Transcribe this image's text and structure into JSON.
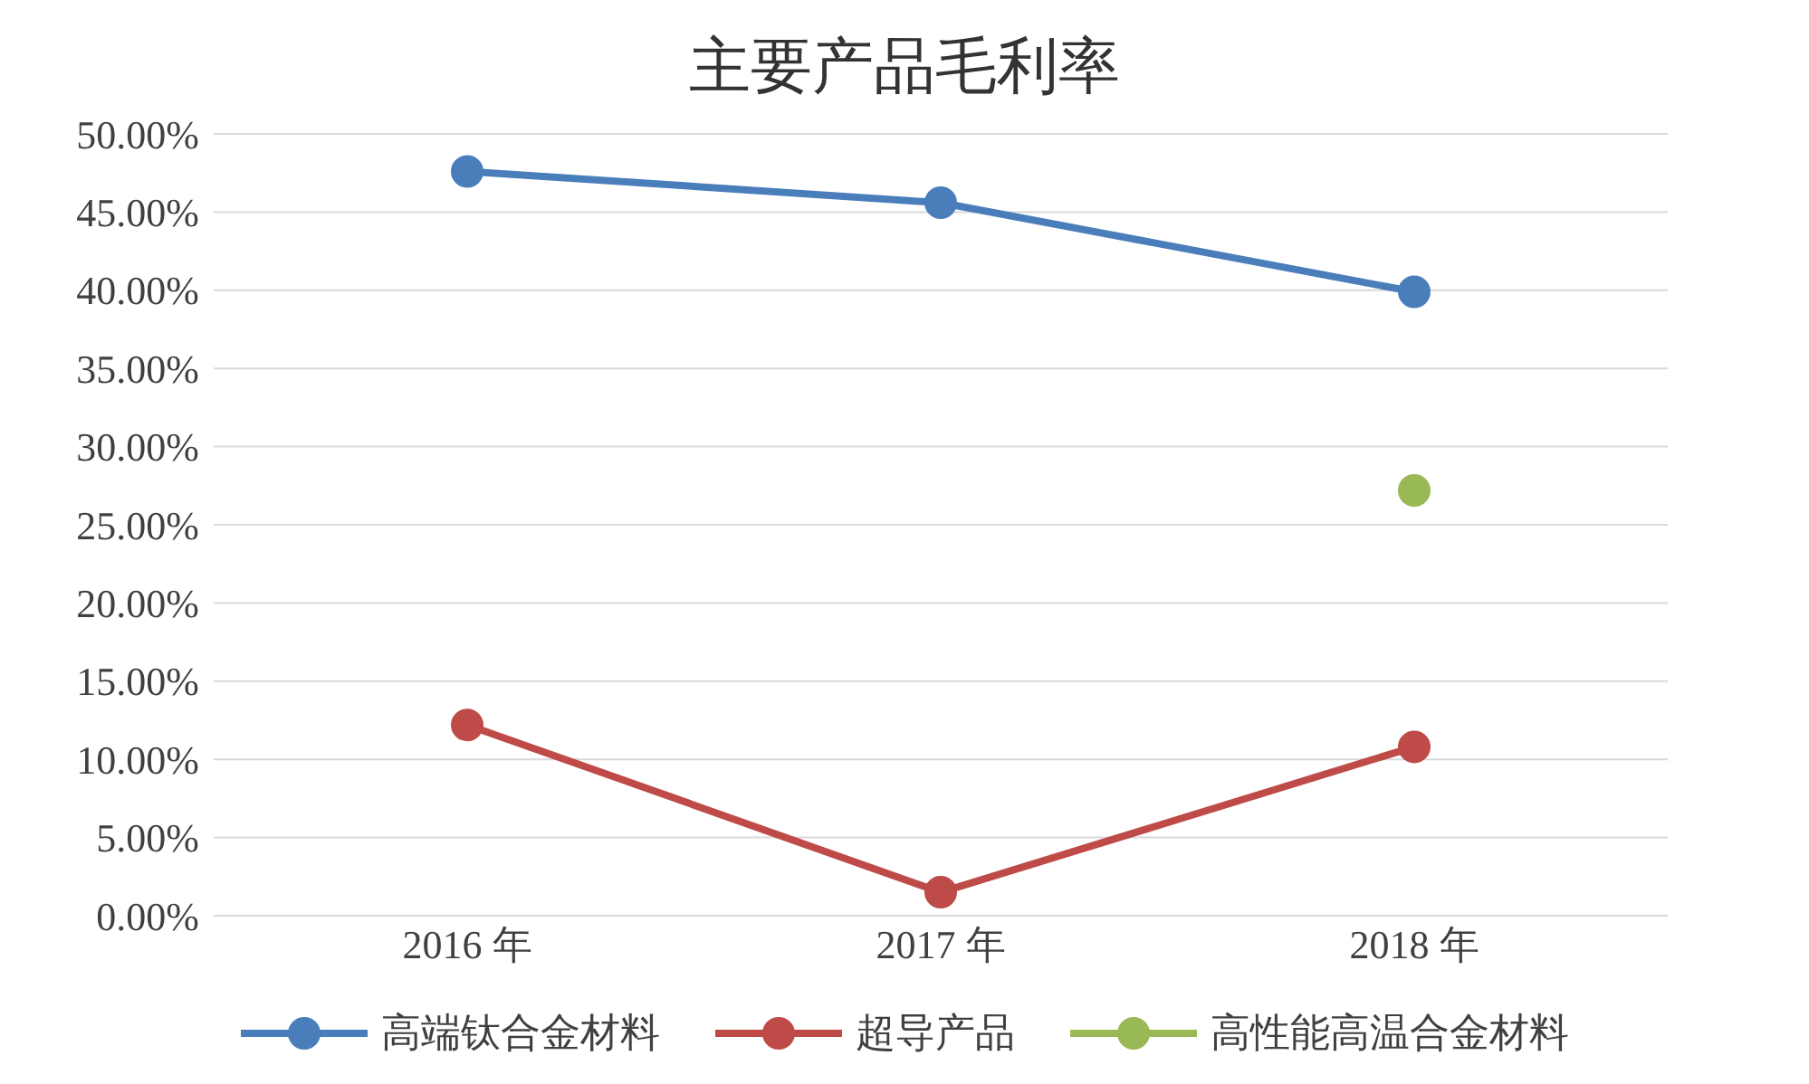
{
  "chart_data": {
    "type": "line",
    "title": "主要产品毛利率",
    "categories": [
      "2016 年",
      "2017 年",
      "2018 年"
    ],
    "series": [
      {
        "name": "高端钛合金材料",
        "color": "#4a7ebb",
        "values": [
          47.6,
          45.6,
          39.9
        ]
      },
      {
        "name": "超导产品",
        "color": "#be4b48",
        "values": [
          12.2,
          1.5,
          10.8
        ]
      },
      {
        "name": "高性能高温合金材料",
        "color": "#98b954",
        "values": [
          null,
          null,
          27.2
        ]
      }
    ],
    "ylim": [
      0,
      50
    ],
    "yticks": [
      {
        "value": 0,
        "label": "0.00%"
      },
      {
        "value": 5,
        "label": "5.00%"
      },
      {
        "value": 10,
        "label": "10.00%"
      },
      {
        "value": 15,
        "label": "15.00%"
      },
      {
        "value": 20,
        "label": "20.00%"
      },
      {
        "value": 25,
        "label": "25.00%"
      },
      {
        "value": 30,
        "label": "30.00%"
      },
      {
        "value": 35,
        "label": "35.00%"
      },
      {
        "value": 40,
        "label": "40.00%"
      },
      {
        "value": 45,
        "label": "45.00%"
      },
      {
        "value": 50,
        "label": "50.00%"
      }
    ],
    "grid": "y",
    "legend": "bottom",
    "marker": "circle",
    "line_style": "solid"
  }
}
